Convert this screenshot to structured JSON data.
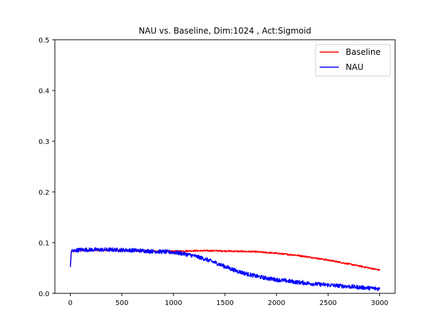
{
  "chart_data": {
    "type": "line",
    "title": "NAU vs. Baseline, Dim:1024 , Act:Sigmoid",
    "xlabel": "",
    "ylabel": "",
    "xlim": [
      -150,
      3150
    ],
    "ylim": [
      0,
      0.5
    ],
    "xticks": [
      0,
      500,
      1000,
      1500,
      2000,
      2500,
      3000
    ],
    "xtick_labels": [
      "0",
      "500",
      "1000",
      "1500",
      "2000",
      "2500",
      "3000"
    ],
    "yticks": [
      0,
      0.1,
      0.2,
      0.3,
      0.4,
      0.5
    ],
    "ytick_labels": [
      "0.0",
      "0.1",
      "0.2",
      "0.3",
      "0.4",
      "0.5"
    ],
    "grid": false,
    "legend_position": "top-right",
    "series": [
      {
        "name": "Baseline",
        "color": "#ff0000",
        "noise": 0.0015,
        "x": [
          0,
          10,
          30,
          60,
          100,
          200,
          400,
          600,
          800,
          1000,
          1200,
          1400,
          1600,
          1800,
          2000,
          2200,
          2400,
          2600,
          2800,
          2900,
          3000
        ],
        "y": [
          0.052,
          0.085,
          0.082,
          0.084,
          0.085,
          0.085,
          0.085,
          0.084,
          0.083,
          0.083,
          0.084,
          0.084,
          0.083,
          0.082,
          0.079,
          0.075,
          0.069,
          0.062,
          0.054,
          0.05,
          0.046
        ]
      },
      {
        "name": "NAU",
        "color": "#0000ff",
        "noise": 0.004,
        "x": [
          0,
          10,
          30,
          60,
          100,
          200,
          400,
          600,
          800,
          1000,
          1100,
          1200,
          1300,
          1400,
          1500,
          1600,
          1700,
          1800,
          1900,
          2000,
          2200,
          2400,
          2600,
          2800,
          3000
        ],
        "y": [
          0.052,
          0.085,
          0.083,
          0.085,
          0.086,
          0.086,
          0.086,
          0.085,
          0.083,
          0.081,
          0.078,
          0.074,
          0.068,
          0.061,
          0.053,
          0.045,
          0.039,
          0.034,
          0.03,
          0.027,
          0.022,
          0.018,
          0.015,
          0.012,
          0.009
        ]
      }
    ]
  }
}
